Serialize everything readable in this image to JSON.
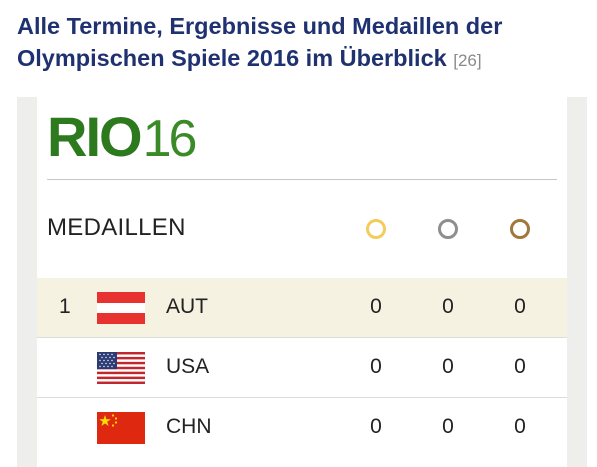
{
  "headline": {
    "title": "Alle Termine, Ergebnisse und Medaillen der Olympischen Spiele 2016 im Überblick",
    "reference": "[26]"
  },
  "widget": {
    "logo_text": "RIO",
    "logo_year": "16",
    "section_title": "MEDAILLEN",
    "medal_icons": [
      "gold-medal-icon",
      "silver-medal-icon",
      "bronze-medal-icon"
    ],
    "colors": {
      "gold": "#f2cd5c",
      "silver": "#8e8e8e",
      "bronze": "#a0783c",
      "headline": "#1f3170",
      "logo": "#2d7a1e",
      "highlight_row": "#f5f2e2"
    },
    "rows": [
      {
        "rank": "1",
        "country": "AUT",
        "flag": "austria-flag-icon",
        "gold": "0",
        "silver": "0",
        "bronze": "0"
      },
      {
        "rank": "",
        "country": "USA",
        "flag": "usa-flag-icon",
        "gold": "0",
        "silver": "0",
        "bronze": "0"
      },
      {
        "rank": "",
        "country": "CHN",
        "flag": "china-flag-icon",
        "gold": "0",
        "silver": "0",
        "bronze": "0"
      }
    ]
  }
}
